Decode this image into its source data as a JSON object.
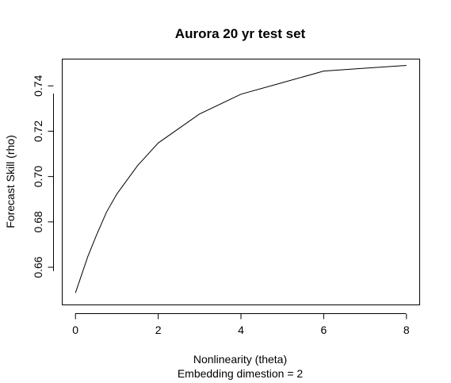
{
  "chart_data": {
    "type": "line",
    "title": "Aurora 20 yr test set",
    "xlabel": "Nonlinearity (theta)",
    "xlabel_sub": "Embedding dimestion =  2",
    "ylabel": "Forecast Skill (rho)",
    "xlim": [
      -0.32,
      8.32
    ],
    "ylim": [
      0.6434,
      0.7518
    ],
    "x_ticks": [
      "0",
      "2",
      "4",
      "6",
      "8"
    ],
    "y_ticks": [
      "0.66",
      "0.68",
      "0.70",
      "0.72",
      "0.74"
    ],
    "grid": false,
    "series": [
      {
        "x": [
          0,
          0.3,
          0.5,
          0.75,
          1,
          1.5,
          2,
          3,
          4,
          5,
          6,
          7,
          8
        ],
        "y": [
          0.6487,
          0.6648,
          0.6738,
          0.6843,
          0.6923,
          0.7048,
          0.7148,
          0.7276,
          0.7363,
          0.7414,
          0.7465,
          0.7478,
          0.749
        ]
      }
    ],
    "color": "#000000"
  }
}
